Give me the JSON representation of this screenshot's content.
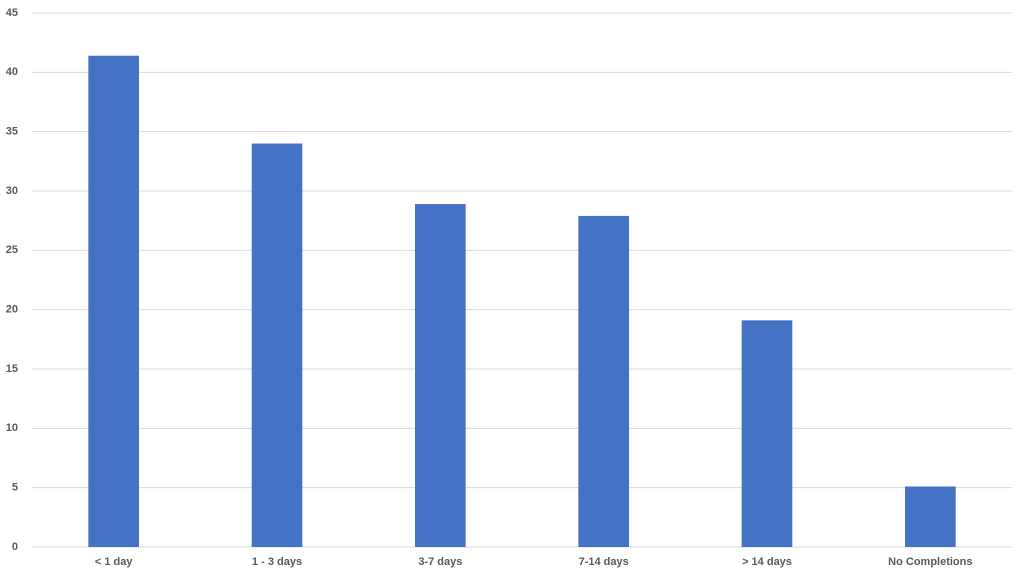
{
  "chart_data": {
    "type": "bar",
    "categories": [
      "< 1 day",
      "1 - 3 days",
      "3-7 days",
      "7-14 days",
      "> 14 days",
      "No Completions"
    ],
    "values": [
      41.4,
      34,
      28.9,
      27.9,
      19.1,
      5.1
    ],
    "color": "#4472c4",
    "ylim": [
      0,
      45
    ],
    "yticks": [
      0,
      5,
      10,
      15,
      20,
      25,
      30,
      35,
      40,
      45
    ],
    "grid": true
  }
}
